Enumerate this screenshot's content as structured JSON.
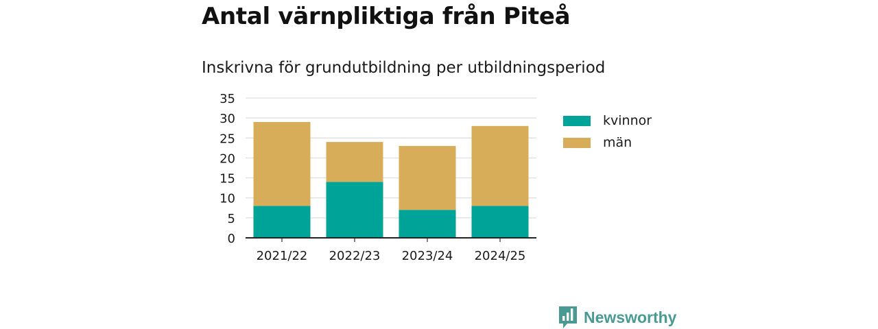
{
  "chart_data": {
    "type": "bar",
    "stacked": true,
    "title": "Antal värnpliktiga från Piteå",
    "subtitle": "Inskrivna för grundutbildning per utbildningsperiod",
    "categories": [
      "2021/22",
      "2022/23",
      "2023/24",
      "2024/25"
    ],
    "series": [
      {
        "name": "kvinnor",
        "values": [
          8,
          14,
          7,
          8
        ],
        "color": "#00a398"
      },
      {
        "name": "män",
        "values": [
          21,
          10,
          16,
          20
        ],
        "color": "#d8ad59"
      }
    ],
    "ylim": [
      0,
      35
    ],
    "yticks": [
      "0",
      "5",
      "10",
      "15",
      "20",
      "25",
      "30",
      "35"
    ],
    "grid": true,
    "legend_position": "right"
  },
  "branding": {
    "label": "Newsworthy",
    "icon": "newsworthy-logo-icon",
    "color": "#4a9a94"
  }
}
